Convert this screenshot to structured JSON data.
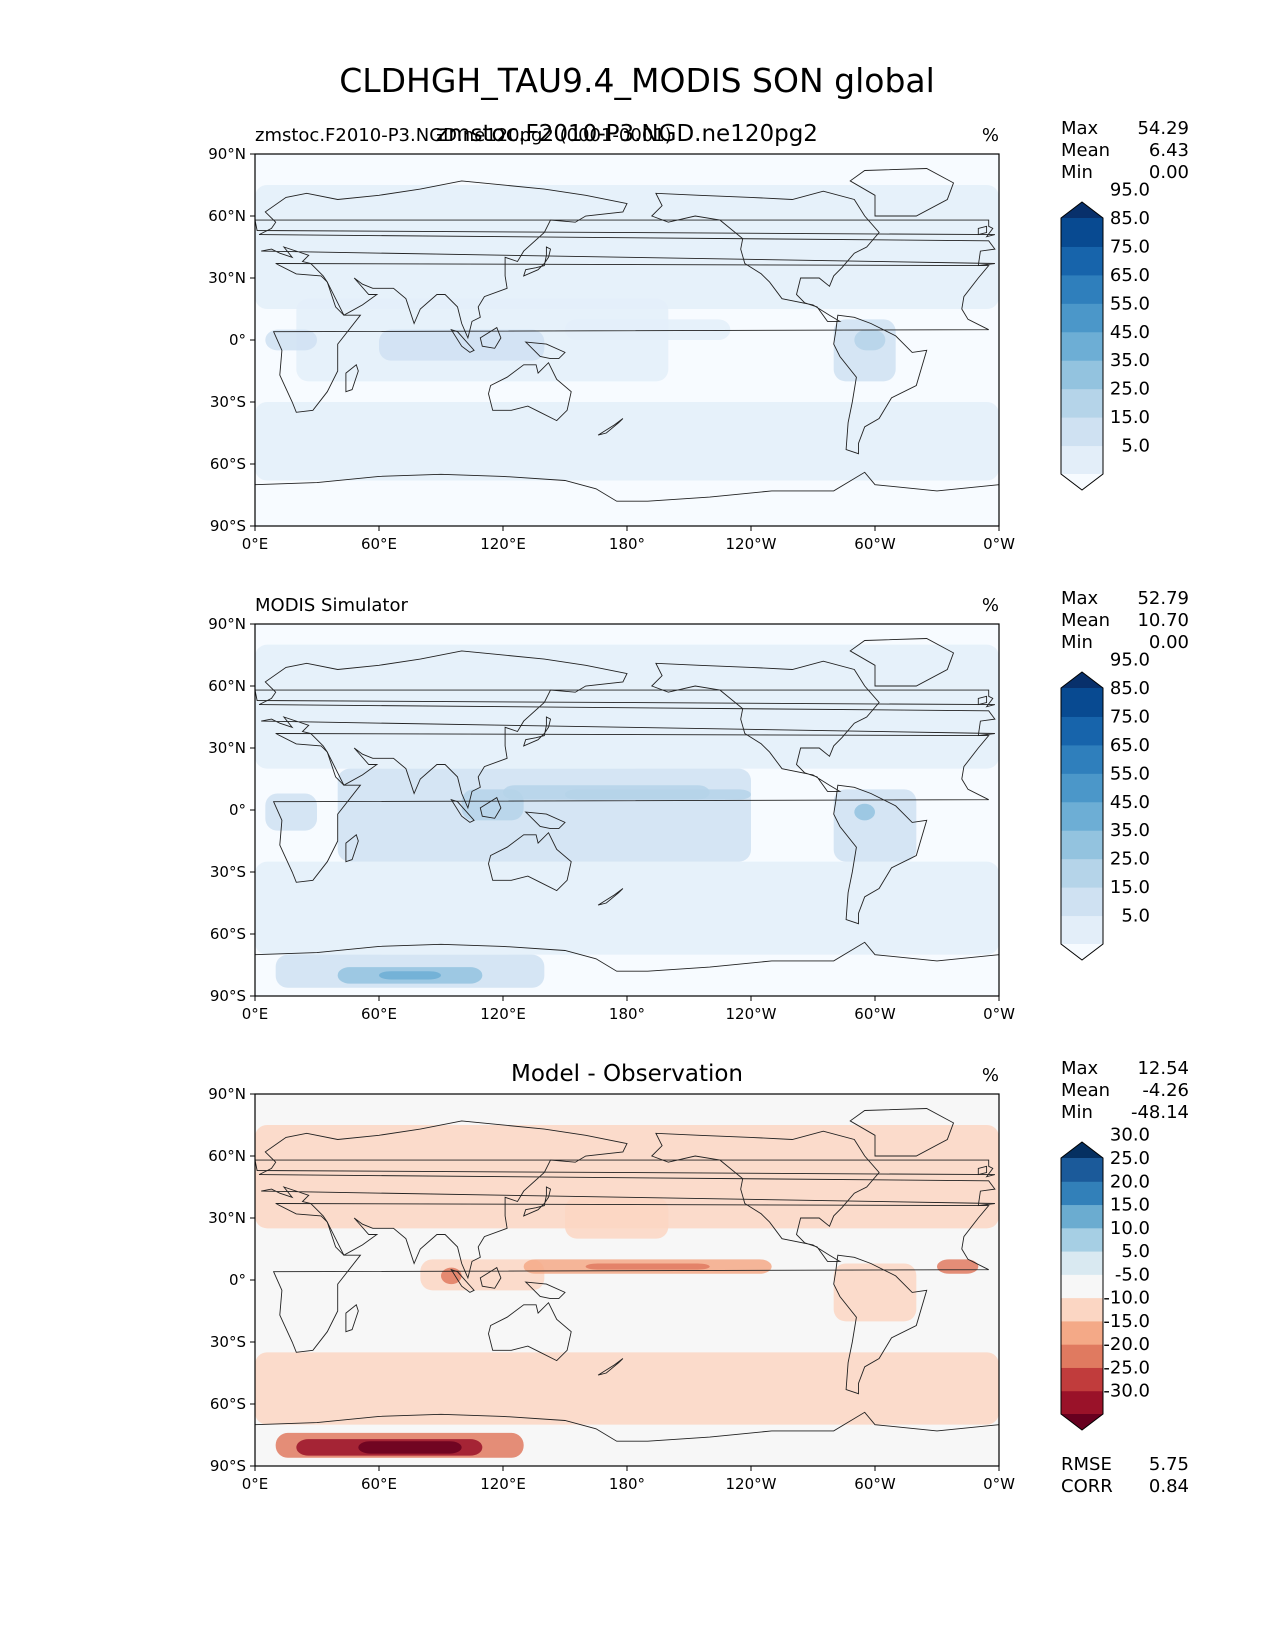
{
  "figure": {
    "title": "CLDHGH_TAU9.4_MODIS SON global"
  },
  "chart_data": [
    {
      "type": "heatmap",
      "panel": "test",
      "center_title": "zmstoc.F2010-P3.NGD.ne120pg2",
      "left_title": "zmstoc.F2010-P3.NGD.ne120pg2 (0001-0001)",
      "units": "%",
      "stats": [
        [
          "Max",
          "54.29"
        ],
        [
          "Mean",
          "6.43"
        ],
        [
          "Min",
          "0.00"
        ]
      ],
      "colorbar": {
        "levels": [
          "5.0",
          "15.0",
          "25.0",
          "35.0",
          "45.0",
          "55.0",
          "65.0",
          "75.0",
          "85.0",
          "95.0"
        ],
        "colors": [
          "#f7fbff",
          "#e3eef9",
          "#cfe1f2",
          "#b5d4e9",
          "#93c3df",
          "#6daed5",
          "#4b97c9",
          "#2f7fbc",
          "#1764ab",
          "#084a91",
          "#08306b"
        ]
      },
      "xlim": [
        0,
        360
      ],
      "ylim": [
        -90,
        90
      ]
    },
    {
      "type": "heatmap",
      "panel": "reference",
      "left_title": "MODIS Simulator",
      "units": "%",
      "stats": [
        [
          "Max",
          "52.79"
        ],
        [
          "Mean",
          "10.70"
        ],
        [
          "Min",
          "0.00"
        ]
      ],
      "colorbar": {
        "levels": [
          "5.0",
          "15.0",
          "25.0",
          "35.0",
          "45.0",
          "55.0",
          "65.0",
          "75.0",
          "85.0",
          "95.0"
        ],
        "colors": [
          "#f7fbff",
          "#e3eef9",
          "#cfe1f2",
          "#b5d4e9",
          "#93c3df",
          "#6daed5",
          "#4b97c9",
          "#2f7fbc",
          "#1764ab",
          "#084a91",
          "#08306b"
        ]
      },
      "xlim": [
        0,
        360
      ],
      "ylim": [
        -90,
        90
      ]
    },
    {
      "type": "heatmap",
      "panel": "difference",
      "center_title": "Model - Observation",
      "units": "%",
      "stats": [
        [
          "Max",
          "12.54"
        ],
        [
          "Mean",
          "-4.26"
        ],
        [
          "Min",
          "-48.14"
        ]
      ],
      "metrics": [
        [
          "RMSE",
          "5.75"
        ],
        [
          "CORR",
          "0.84"
        ]
      ],
      "colorbar": {
        "levels": [
          "-30.0",
          "-25.0",
          "-20.0",
          "-15.0",
          "-10.0",
          "-5.0",
          "5.0",
          "10.0",
          "15.0",
          "20.0",
          "25.0",
          "30.0"
        ],
        "colors": [
          "#67001f",
          "#9a1229",
          "#c13c3c",
          "#e07a60",
          "#f4a987",
          "#fbd6c3",
          "#f7f7f7",
          "#d9e9f1",
          "#a6cfe4",
          "#6bacd0",
          "#3280b9",
          "#1b5a9a",
          "#053061"
        ]
      },
      "xlim": [
        0,
        360
      ],
      "ylim": [
        -90,
        90
      ]
    }
  ],
  "axes": {
    "xticks": [
      "0°E",
      "60°E",
      "120°E",
      "180°",
      "120°W",
      "60°W",
      "0°W"
    ],
    "yticks": [
      "90°N",
      "60°N",
      "30°N",
      "0°",
      "30°S",
      "60°S",
      "90°S"
    ]
  }
}
